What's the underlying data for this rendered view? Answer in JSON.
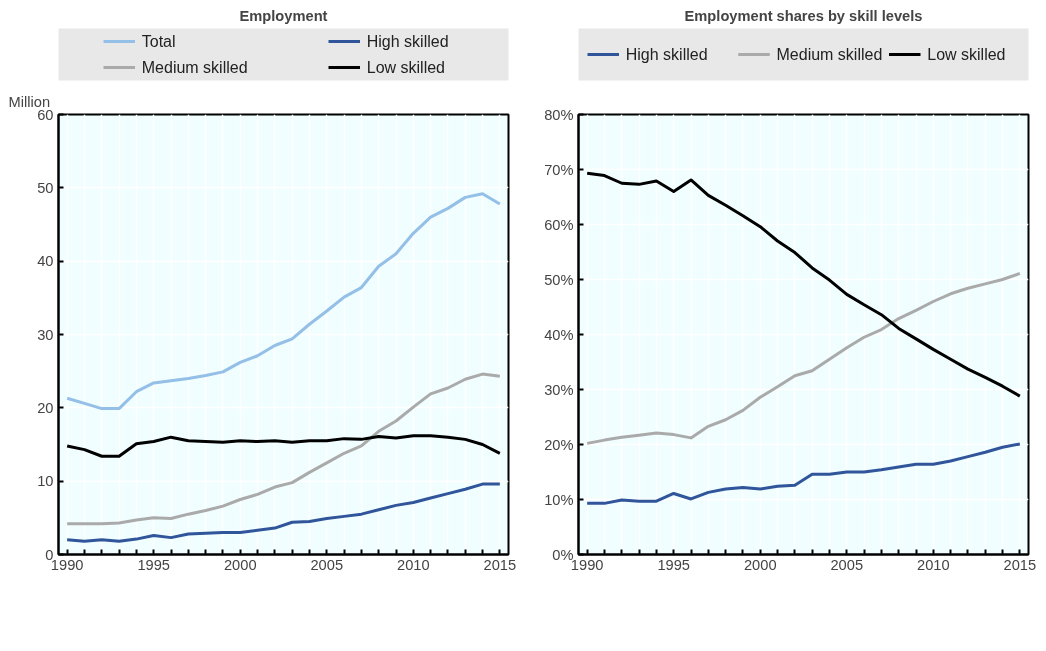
{
  "chart_data": [
    {
      "type": "line",
      "title": "Employment",
      "ylabel": "Million",
      "x": [
        1990,
        1991,
        1992,
        1993,
        1994,
        1995,
        1996,
        1997,
        1998,
        1999,
        2000,
        2001,
        2002,
        2003,
        2004,
        2005,
        2006,
        2007,
        2008,
        2009,
        2010,
        2011,
        2012,
        2013,
        2014,
        2015
      ],
      "series": [
        {
          "name": "Total",
          "color": "#94bfe6",
          "values": [
            21.3,
            20.6,
            19.9,
            19.9,
            22.2,
            23.4,
            23.7,
            24.0,
            24.4,
            24.9,
            26.2,
            27.1,
            28.5,
            29.4,
            31.4,
            33.2,
            35.1,
            36.4,
            39.3,
            41.0,
            43.8,
            46.0,
            47.2,
            48.7,
            49.2,
            47.8
          ]
        },
        {
          "name": "High skilled",
          "color": "#30559a",
          "values": [
            2.0,
            1.8,
            2.0,
            1.8,
            2.1,
            2.6,
            2.3,
            2.8,
            2.9,
            3.0,
            3.0,
            3.3,
            3.6,
            4.4,
            4.5,
            4.9,
            5.2,
            5.5,
            6.1,
            6.7,
            7.1,
            7.7,
            8.3,
            8.9,
            9.6,
            9.6
          ]
        },
        {
          "name": "Medium skilled",
          "color": "#aaaaaa",
          "values": [
            4.2,
            4.2,
            4.2,
            4.3,
            4.7,
            5.0,
            4.9,
            5.5,
            6.0,
            6.6,
            7.5,
            8.2,
            9.2,
            9.8,
            11.2,
            12.5,
            13.8,
            14.8,
            16.8,
            18.2,
            20.1,
            21.9,
            22.7,
            23.9,
            24.6,
            24.3
          ]
        },
        {
          "name": "Low skilled",
          "color": "#000000",
          "values": [
            14.8,
            14.3,
            13.4,
            13.4,
            15.1,
            15.4,
            16.0,
            15.5,
            15.4,
            15.3,
            15.5,
            15.4,
            15.5,
            15.3,
            15.5,
            15.5,
            15.8,
            15.7,
            16.1,
            15.9,
            16.2,
            16.2,
            16.0,
            15.7,
            15.0,
            13.8
          ]
        }
      ],
      "xlim": [
        1989.5,
        2015.5
      ],
      "xticks": [
        1990,
        {
          "value": 1991,
          "label": null
        },
        {
          "value": 1992,
          "label": null
        },
        {
          "value": 1993,
          "label": null
        },
        {
          "value": 1994,
          "label": null
        },
        1995,
        {
          "value": 1996,
          "label": null
        },
        {
          "value": 1997,
          "label": null
        },
        {
          "value": 1998,
          "label": null
        },
        {
          "value": 1999,
          "label": null
        },
        2000,
        {
          "value": 2001,
          "label": null
        },
        {
          "value": 2002,
          "label": null
        },
        {
          "value": 2003,
          "label": null
        },
        {
          "value": 2004,
          "label": null
        },
        2005,
        {
          "value": 2006,
          "label": null
        },
        {
          "value": 2007,
          "label": null
        },
        {
          "value": 2008,
          "label": null
        },
        {
          "value": 2009,
          "label": null
        },
        2010,
        {
          "value": 2011,
          "label": null
        },
        {
          "value": 2012,
          "label": null
        },
        {
          "value": 2013,
          "label": null
        },
        {
          "value": 2014,
          "label": null
        },
        2015
      ],
      "ylim": [
        0,
        60
      ],
      "yticks": [
        0,
        10,
        20,
        30,
        40,
        50,
        60
      ],
      "grid": true,
      "legend": "top",
      "line_style": "solid"
    },
    {
      "type": "line",
      "title": "Employment shares by skill levels",
      "x": [
        1990,
        1991,
        1992,
        1993,
        1994,
        1995,
        1996,
        1997,
        1998,
        1999,
        2000,
        2001,
        2002,
        2003,
        2004,
        2005,
        2006,
        2007,
        2008,
        2009,
        2010,
        2011,
        2012,
        2013,
        2014,
        2015
      ],
      "series": [
        {
          "name": "High skilled",
          "color": "#30559a",
          "values": [
            9.3,
            9.3,
            9.9,
            9.7,
            9.7,
            11.1,
            10.1,
            11.3,
            11.9,
            12.2,
            11.9,
            12.4,
            12.6,
            14.6,
            14.6,
            15.0,
            15.0,
            15.4,
            15.9,
            16.4,
            16.4,
            17.0,
            17.8,
            18.6,
            19.5,
            20.1
          ]
        },
        {
          "name": "Medium skilled",
          "color": "#aaaaaa",
          "values": [
            20.2,
            20.8,
            21.3,
            21.7,
            22.1,
            21.8,
            21.2,
            23.3,
            24.5,
            26.2,
            28.6,
            30.5,
            32.5,
            33.4,
            35.5,
            37.6,
            39.5,
            40.9,
            42.9,
            44.4,
            46.0,
            47.4,
            48.4,
            49.2,
            50.0,
            51.1
          ]
        },
        {
          "name": "Low skilled",
          "color": "#000000",
          "values": [
            69.3,
            68.9,
            67.5,
            67.3,
            67.9,
            66.0,
            68.1,
            65.3,
            63.5,
            61.6,
            59.6,
            57.0,
            54.9,
            52.1,
            49.9,
            47.3,
            45.4,
            43.6,
            41.1,
            39.2,
            37.3,
            35.5,
            33.7,
            32.2,
            30.6,
            28.8
          ]
        }
      ],
      "xlim": [
        1989.5,
        2015.5
      ],
      "xticks": [
        1990,
        {
          "value": 1991,
          "label": null
        },
        {
          "value": 1992,
          "label": null
        },
        {
          "value": 1993,
          "label": null
        },
        {
          "value": 1994,
          "label": null
        },
        1995,
        {
          "value": 1996,
          "label": null
        },
        {
          "value": 1997,
          "label": null
        },
        {
          "value": 1998,
          "label": null
        },
        {
          "value": 1999,
          "label": null
        },
        2000,
        {
          "value": 2001,
          "label": null
        },
        {
          "value": 2002,
          "label": null
        },
        {
          "value": 2003,
          "label": null
        },
        {
          "value": 2004,
          "label": null
        },
        2005,
        {
          "value": 2006,
          "label": null
        },
        {
          "value": 2007,
          "label": null
        },
        {
          "value": 2008,
          "label": null
        },
        {
          "value": 2009,
          "label": null
        },
        2010,
        {
          "value": 2011,
          "label": null
        },
        {
          "value": 2012,
          "label": null
        },
        {
          "value": 2013,
          "label": null
        },
        {
          "value": 2014,
          "label": null
        },
        2015
      ],
      "ylim": [
        0,
        80
      ],
      "yticks": [
        {
          "value": 0,
          "label": "0%"
        },
        {
          "value": 10,
          "label": "10%"
        },
        {
          "value": 20,
          "label": "20%"
        },
        {
          "value": 30,
          "label": "30%"
        },
        {
          "value": 40,
          "label": "40%"
        },
        {
          "value": 50,
          "label": "50%"
        },
        {
          "value": 60,
          "label": "60%"
        },
        {
          "value": 70,
          "label": "70%"
        },
        {
          "value": 80,
          "label": "80%"
        }
      ],
      "grid": true,
      "legend": "top",
      "line_style": "solid"
    }
  ]
}
